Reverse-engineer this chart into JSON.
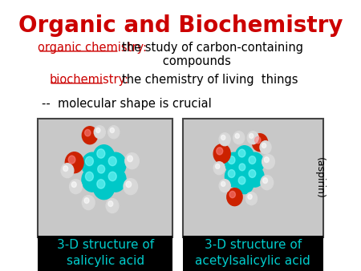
{
  "title": "Organic and Biochemistry",
  "title_color": "#cc0000",
  "title_fontsize": 20,
  "line1_label": "organic chemistry:",
  "line2_label": "biochemistry:",
  "line3_text": "--  molecular shape is crucial",
  "label_color": "#cc0000",
  "body_color": "#000000",
  "box_bg": "#c8c8c8",
  "box_border": "#444444",
  "caption_bg": "#000000",
  "caption_color": "#00cccc",
  "caption1": "3-D structure of\nsalicylic acid",
  "caption2": "3-D structure of\nacetylsalicylic acid",
  "aspirin_label": "(aspirin)",
  "bg_color": "#ffffff",
  "teal": "#00c8c8",
  "red_atom": "#cc2200",
  "white_atom": "#d8d8d8"
}
